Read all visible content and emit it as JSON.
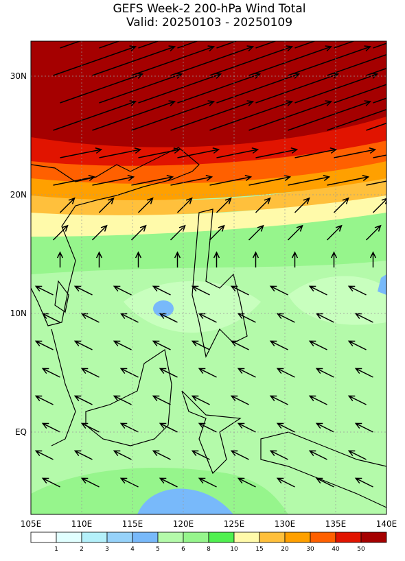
{
  "header": {
    "title": "GEFS Week-2 200-hPa Wind Total",
    "subtitle": "Valid: 20250103 - 20250109"
  },
  "map": {
    "lat_labels": [
      "30N",
      "20N",
      "10N",
      "EQ"
    ],
    "lon_labels": [
      "105E",
      "110E",
      "115E",
      "120E",
      "125E",
      "130E",
      "135E",
      "140E"
    ]
  },
  "legend": {
    "labels": [
      "1",
      "2",
      "3",
      "4",
      "5",
      "6",
      "8",
      "10",
      "15",
      "20",
      "30",
      "40",
      "50"
    ]
  }
}
